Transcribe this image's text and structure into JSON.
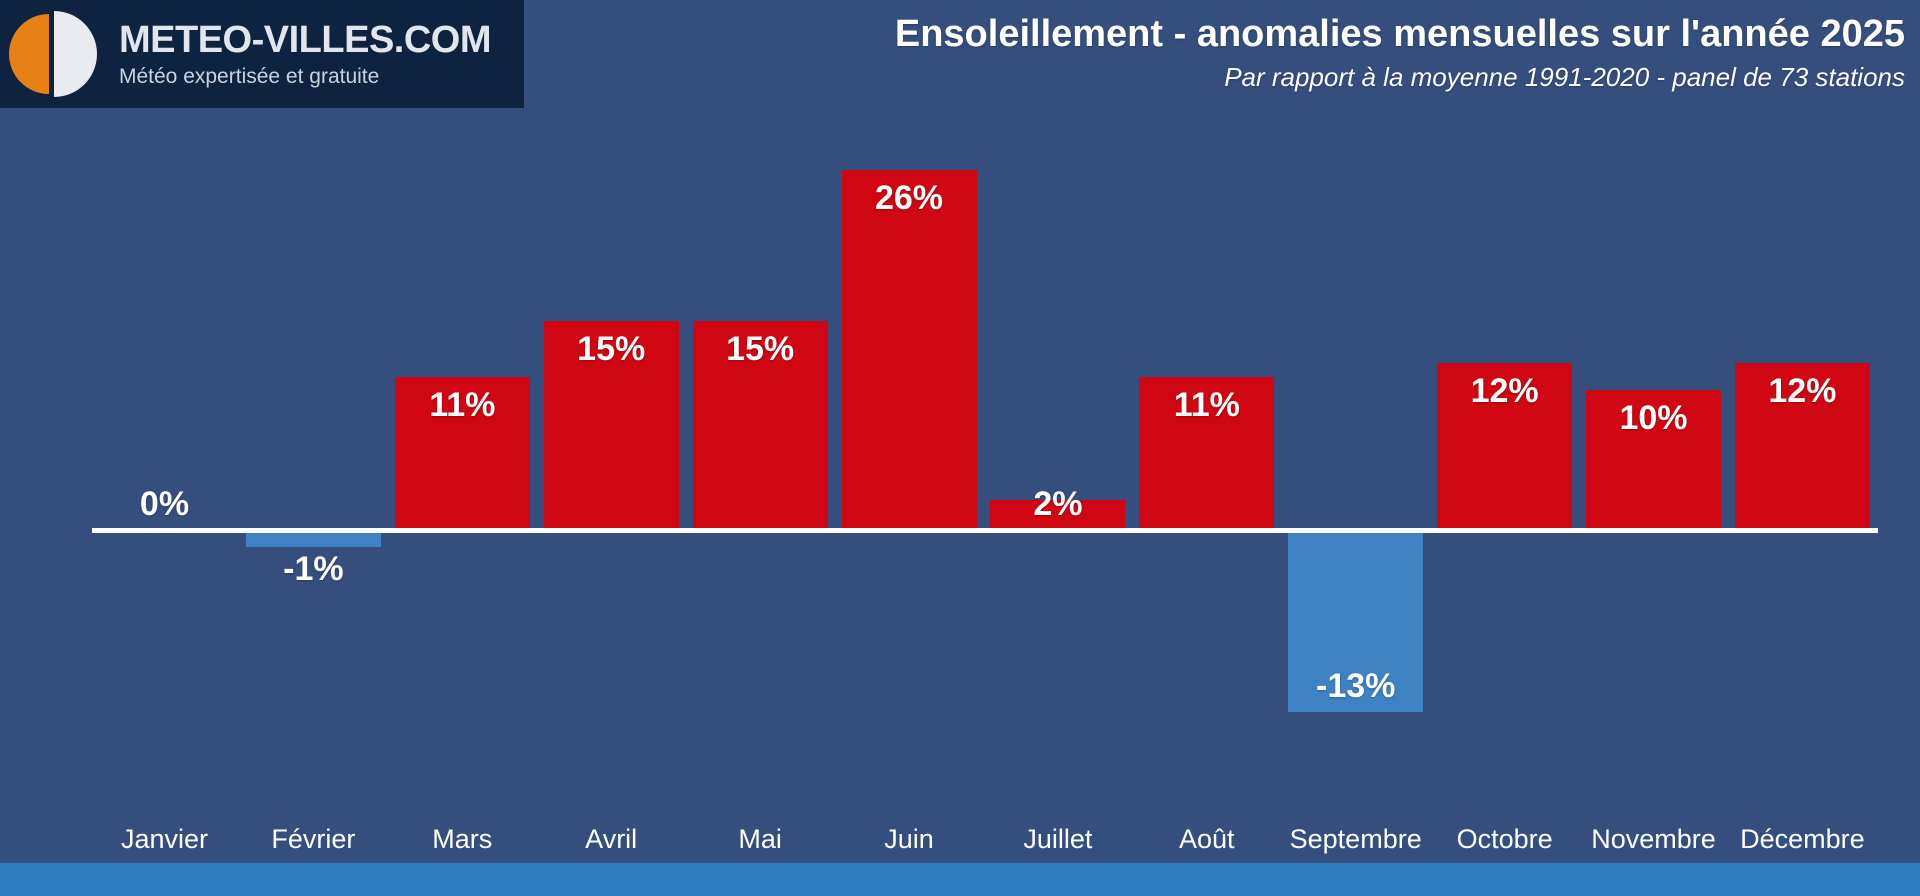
{
  "brand": {
    "name": "METEO-VILLES.COM",
    "tagline": "Météo expertisée et gratuite"
  },
  "header": {
    "title": "Ensoleillement - anomalies mensuelles sur l'année 2025",
    "subtitle": "Par rapport à la moyenne 1991-2020 - panel de 73 stations"
  },
  "chart_data": {
    "type": "bar",
    "title": "Ensoleillement - anomalies mensuelles sur l'année 2025",
    "subtitle": "Par rapport à la moyenne 1991-2020 - panel de 73 stations",
    "categories": [
      "Janvier",
      "Février",
      "Mars",
      "Avril",
      "Mai",
      "Juin",
      "Juillet",
      "Août",
      "Septembre",
      "Octobre",
      "Novembre",
      "Décembre"
    ],
    "values": [
      0,
      -1,
      11,
      15,
      15,
      26,
      2,
      11,
      -13,
      12,
      10,
      12
    ],
    "value_labels": [
      "0%",
      "-1%",
      "11%",
      "15%",
      "15%",
      "26%",
      "2%",
      "11%",
      "-13%",
      "12%",
      "10%",
      "12%"
    ],
    "unit": "%",
    "ylim": [
      -16,
      30
    ],
    "grid": false,
    "legend": false,
    "baseline_at_zero": true,
    "positive_color": "#D00712",
    "negative_color": "#3E82C4",
    "baseline_color": "#FFFFFF"
  },
  "colors": {
    "background": "#344F7E",
    "logo_background": "#0E2340",
    "logo_orange": "#E78114",
    "logo_disc_white": "#E9EBF0",
    "footer_strip": "#2E7CC0",
    "text": "#FFFFFF"
  }
}
